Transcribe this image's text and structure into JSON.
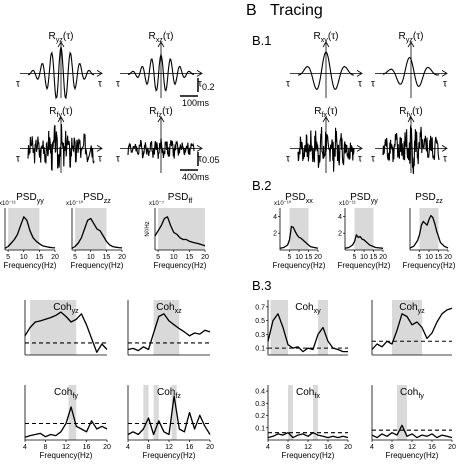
{
  "panel_b": {
    "letter": "B",
    "title": "Tracing"
  },
  "section_labels": {
    "b1": "B.1",
    "b2": "B.2",
    "b3": "B.3"
  },
  "time_axis": {
    "tau": "τ",
    "amp_bar_1": "0.2",
    "time_bar_1": "100ms",
    "amp_bar_2": "0.05",
    "time_bar_2": "400ms"
  },
  "colors": {
    "line": "#000000",
    "band": "#d9d9d9"
  },
  "chart_data": [
    {
      "type": "line",
      "panel": "A-corr",
      "title": "R_yz(τ)",
      "series": [
        {
          "values": []
        }
      ]
    },
    {
      "type": "line",
      "panel": "A-corr",
      "title": "R_xz(τ)",
      "series": [
        {
          "values": []
        }
      ]
    },
    {
      "type": "line",
      "panel": "A-corr",
      "title": "R_fy(τ)",
      "series": [
        {
          "values": []
        }
      ]
    },
    {
      "type": "line",
      "panel": "A-corr",
      "title": "R_fz(τ)",
      "series": [
        {
          "values": []
        }
      ]
    },
    {
      "type": "line",
      "panel": "B-corr",
      "title": "R_xy(τ)",
      "series": [
        {
          "values": []
        }
      ]
    },
    {
      "type": "line",
      "panel": "B-corr",
      "title": "R_yz(τ)",
      "series": [
        {
          "values": []
        }
      ]
    },
    {
      "type": "line",
      "panel": "B-corr",
      "title": "R_fx(τ)",
      "series": [
        {
          "values": []
        }
      ]
    },
    {
      "type": "line",
      "panel": "B-corr",
      "title": "R_fy(τ)",
      "series": [
        {
          "values": []
        }
      ]
    },
    {
      "type": "line",
      "panel": "A-psd",
      "title": "PSD_yy",
      "exponent": "x10⁻¹¹",
      "ylabel": "",
      "xlabel": "Frequency(Hz)",
      "xlim": [
        4,
        20
      ],
      "xticks": [
        5,
        10,
        15,
        20
      ],
      "yticks": [],
      "shade": [
        [
          5,
          15
        ]
      ],
      "x": [
        4,
        5,
        6,
        7,
        8,
        9,
        10,
        11,
        12,
        13,
        14,
        15,
        16,
        17,
        18,
        19,
        20
      ],
      "series": [
        {
          "values": [
            0.05,
            0.1,
            0.2,
            0.3,
            0.45,
            0.7,
            0.95,
            0.85,
            0.55,
            0.35,
            0.25,
            0.18,
            0.12,
            0.1,
            0.08,
            0.07,
            0.06
          ]
        }
      ],
      "ylim": [
        0,
        1.2
      ]
    },
    {
      "type": "line",
      "panel": "A-psd",
      "title": "PSD_zz",
      "exponent": "x10⁻¹⁰",
      "ylabel": "",
      "xlabel": "Frequency(Hz)",
      "xlim": [
        4,
        20
      ],
      "xticks": [
        5,
        10,
        15,
        20
      ],
      "yticks": [],
      "shade": [
        [
          5,
          15
        ]
      ],
      "x": [
        4,
        5,
        6,
        7,
        8,
        9,
        10,
        11,
        12,
        13,
        14,
        15,
        16,
        17,
        18,
        19,
        20
      ],
      "series": [
        {
          "values": [
            0.05,
            0.1,
            0.2,
            0.35,
            0.6,
            0.85,
            0.9,
            0.75,
            0.6,
            0.55,
            0.4,
            0.25,
            0.15,
            0.1,
            0.08,
            0.07,
            0.06
          ]
        }
      ],
      "ylim": [
        0,
        1.2
      ]
    },
    {
      "type": "line",
      "panel": "A-psd",
      "title": "PSD_ff",
      "exponent": "x10⁻⁷",
      "ylabel": "N²/Hz",
      "xlabel": "Frequency(Hz)",
      "xlim": [
        4,
        20
      ],
      "xticks": [
        5,
        10,
        15,
        20
      ],
      "yticks": [],
      "shade": [
        [
          5,
          20
        ]
      ],
      "x": [
        4,
        5,
        6,
        7,
        8,
        9,
        10,
        11,
        12,
        13,
        14,
        15,
        16,
        17,
        18,
        19,
        20
      ],
      "series": [
        {
          "values": [
            0.4,
            0.55,
            0.7,
            0.9,
            0.95,
            0.7,
            0.5,
            0.45,
            0.35,
            0.3,
            0.3,
            0.25,
            0.22,
            0.2,
            0.18,
            0.15,
            0.12
          ]
        }
      ],
      "ylim": [
        0,
        1.2
      ]
    },
    {
      "type": "line",
      "panel": "B-psd",
      "title": "PSD_xx",
      "exponent": "x10⁻¹⁰",
      "ylabel": "",
      "xlabel": "Frequency(Hz)",
      "xlim": [
        0,
        20
      ],
      "xticks": [
        5,
        10,
        15,
        20
      ],
      "yticks": [
        2,
        4
      ],
      "shade": [
        [
          5,
          15
        ]
      ],
      "x": [
        0,
        2,
        4,
        5,
        6,
        7,
        8,
        9,
        10,
        11,
        12,
        13,
        14,
        15,
        16,
        18,
        20
      ],
      "series": [
        {
          "values": [
            0.2,
            0.3,
            0.6,
            1.2,
            2.8,
            2.7,
            2.2,
            1.8,
            1.5,
            1.4,
            1.2,
            1.0,
            0.8,
            0.6,
            0.4,
            0.3,
            0.2
          ]
        }
      ],
      "ylim": [
        0,
        5
      ]
    },
    {
      "type": "line",
      "panel": "B-psd",
      "title": "PSD_yy",
      "exponent": "x10⁻¹¹",
      "ylabel": "",
      "xlabel": "Frequency(Hz)",
      "xlim": [
        0,
        20
      ],
      "xticks": [
        5,
        10,
        15,
        20
      ],
      "yticks": [
        2,
        4
      ],
      "shade": [
        [
          5,
          15
        ]
      ],
      "x": [
        0,
        2,
        4,
        5,
        6,
        7,
        8,
        9,
        10,
        11,
        12,
        13,
        14,
        15,
        16,
        18,
        20
      ],
      "series": [
        {
          "values": [
            0.2,
            0.3,
            0.6,
            1.0,
            1.8,
            1.5,
            1.6,
            1.3,
            1.2,
            1.0,
            0.8,
            0.6,
            0.5,
            0.4,
            0.3,
            0.25,
            0.2
          ]
        }
      ],
      "ylim": [
        0,
        5
      ]
    },
    {
      "type": "line",
      "panel": "B-psd",
      "title": "PSD_zz",
      "exponent": "",
      "ylabel": "",
      "xlabel": "Frequency(Hz)",
      "xlim": [
        0,
        20
      ],
      "xticks": [
        5,
        10,
        15,
        20
      ],
      "yticks": [],
      "shade": [
        [
          5,
          15
        ]
      ],
      "x": [
        0,
        2,
        4,
        5,
        6,
        7,
        8,
        9,
        10,
        11,
        12,
        13,
        14,
        15,
        16,
        18,
        20
      ],
      "series": [
        {
          "values": [
            0.1,
            0.2,
            0.5,
            0.8,
            1.3,
            1.5,
            1.4,
            1.3,
            1.6,
            1.8,
            1.7,
            1.4,
            1.0,
            0.7,
            0.4,
            0.2,
            0.1
          ]
        }
      ],
      "ylim": [
        0,
        2.2
      ]
    },
    {
      "type": "line",
      "panel": "A-coh",
      "title": "Coh_yz",
      "xlabel": "",
      "xlim": [
        4,
        20
      ],
      "xticks": [],
      "yticks": [],
      "ylim": [
        0,
        1
      ],
      "threshold": 0.22,
      "shade": [
        [
          5,
          14
        ]
      ],
      "x": [
        4,
        5,
        6,
        7,
        8,
        9,
        10,
        11,
        12,
        13,
        14,
        15,
        16,
        17,
        18,
        19,
        20
      ],
      "series": [
        {
          "values": [
            0.35,
            0.5,
            0.6,
            0.62,
            0.65,
            0.68,
            0.72,
            0.78,
            0.7,
            0.6,
            0.65,
            0.75,
            0.55,
            0.3,
            0.05,
            0.2,
            0.1
          ]
        }
      ]
    },
    {
      "type": "line",
      "panel": "A-coh",
      "title": "Coh_xz",
      "xlabel": "",
      "xlim": [
        4,
        20
      ],
      "xticks": [],
      "yticks": [],
      "ylim": [
        0,
        1
      ],
      "threshold": 0.22,
      "shade": [
        [
          9,
          14
        ]
      ],
      "x": [
        4,
        5,
        6,
        7,
        8,
        9,
        10,
        11,
        12,
        13,
        14,
        15,
        16,
        17,
        18,
        19,
        20
      ],
      "series": [
        {
          "values": [
            0.1,
            0.12,
            0.08,
            0.15,
            0.1,
            0.4,
            0.7,
            0.75,
            0.62,
            0.55,
            0.48,
            0.42,
            0.35,
            0.4,
            0.38,
            0.45,
            0.42
          ]
        }
      ]
    },
    {
      "type": "line",
      "panel": "A-coh",
      "title": "Coh_fy",
      "xlabel": "Frequency(Hz)",
      "xlim": [
        4,
        20
      ],
      "xticks": [
        4,
        8,
        12,
        16,
        20
      ],
      "yticks": [],
      "ylim": [
        0,
        1
      ],
      "threshold": 0.3,
      "shade": [
        [
          12.5,
          14
        ]
      ],
      "x": [
        4,
        5,
        6,
        7,
        8,
        9,
        10,
        11,
        12,
        13,
        14,
        15,
        16,
        17,
        18,
        19,
        20
      ],
      "series": [
        {
          "values": [
            0.05,
            0.08,
            0.1,
            0.12,
            0.06,
            0.1,
            0.08,
            0.15,
            0.3,
            0.6,
            0.25,
            0.2,
            0.15,
            0.35,
            0.2,
            0.25,
            0.2
          ]
        }
      ]
    },
    {
      "type": "line",
      "panel": "A-coh",
      "title": "Coh_fz",
      "xlabel": "Frequency(Hz)",
      "xlim": [
        4,
        20
      ],
      "xticks": [
        4,
        8,
        12,
        16,
        20
      ],
      "yticks": [],
      "ylim": [
        0,
        1
      ],
      "threshold": 0.3,
      "shade": [
        [
          7,
          8
        ],
        [
          9,
          10
        ],
        [
          12.5,
          13.5
        ]
      ],
      "x": [
        4,
        5,
        6,
        7,
        8,
        9,
        10,
        11,
        12,
        13,
        14,
        15,
        16,
        17,
        18,
        19,
        20
      ],
      "series": [
        {
          "values": [
            0.1,
            0.15,
            0.1,
            0.2,
            0.4,
            0.1,
            0.35,
            0.15,
            0.1,
            0.8,
            0.2,
            0.15,
            0.5,
            0.2,
            0.45,
            0.25,
            0.1
          ]
        }
      ]
    },
    {
      "type": "line",
      "panel": "B-coh",
      "title": "Coh_xy",
      "xlabel": "",
      "xlim": [
        4,
        20
      ],
      "xticks": [],
      "yticks": [
        0.1,
        0.3,
        0.5,
        0.7
      ],
      "ylim": [
        0,
        0.8
      ],
      "threshold": 0.1,
      "shade": [
        [
          4.5,
          8
        ],
        [
          14,
          16
        ]
      ],
      "x": [
        4,
        5,
        6,
        7,
        8,
        9,
        10,
        11,
        12,
        13,
        14,
        15,
        16,
        17,
        18,
        19,
        20
      ],
      "series": [
        {
          "values": [
            0.2,
            0.5,
            0.6,
            0.4,
            0.15,
            0.1,
            0.12,
            0.05,
            0.1,
            0.08,
            0.3,
            0.4,
            0.2,
            0.1,
            0.08,
            0.05,
            0.05
          ]
        }
      ]
    },
    {
      "type": "line",
      "panel": "B-coh",
      "title": "Coh_yz",
      "xlabel": "",
      "xlim": [
        4,
        20
      ],
      "xticks": [],
      "yticks": [],
      "ylim": [
        0,
        1
      ],
      "threshold": 0.25,
      "shade": [
        [
          8,
          14
        ]
      ],
      "x": [
        4,
        5,
        6,
        7,
        8,
        9,
        10,
        11,
        12,
        13,
        14,
        15,
        16,
        17,
        18,
        19,
        20
      ],
      "series": [
        {
          "values": [
            0.1,
            0.2,
            0.15,
            0.25,
            0.2,
            0.45,
            0.75,
            0.7,
            0.55,
            0.6,
            0.5,
            0.3,
            0.4,
            0.6,
            0.75,
            0.82,
            0.85
          ]
        }
      ]
    },
    {
      "type": "line",
      "panel": "B-coh",
      "title": "Coh_fx",
      "xlabel": "Frequency(Hz)",
      "xlim": [
        4,
        20
      ],
      "xticks": [
        4,
        8,
        12,
        16,
        20
      ],
      "yticks": [
        0.1,
        0.2,
        0.3,
        0.4
      ],
      "ylim": [
        0,
        0.45
      ],
      "threshold": 0.06,
      "shade": [
        [
          8,
          9
        ],
        [
          13,
          14
        ]
      ],
      "x": [
        4,
        5,
        6,
        7,
        8,
        9,
        10,
        11,
        12,
        13,
        14,
        15,
        16,
        17,
        18,
        19,
        20
      ],
      "series": [
        {
          "values": [
            0.02,
            0.03,
            0.05,
            0.04,
            0.06,
            0.02,
            0.04,
            0.05,
            0.03,
            0.06,
            0.04,
            0.03,
            0.02,
            0.03,
            0.02,
            0.03,
            0.02
          ]
        }
      ]
    },
    {
      "type": "line",
      "panel": "B-coh",
      "title": "Coh_fy",
      "xlabel": "Frequency(Hz)",
      "xlim": [
        4,
        20
      ],
      "xticks": [
        4,
        8,
        12,
        16,
        20
      ],
      "yticks": [],
      "ylim": [
        0,
        0.45
      ],
      "threshold": 0.08,
      "shade": [
        [
          9,
          11
        ]
      ],
      "x": [
        4,
        5,
        6,
        7,
        8,
        9,
        10,
        11,
        12,
        13,
        14,
        15,
        16,
        17,
        18,
        19,
        20
      ],
      "series": [
        {
          "values": [
            0.04,
            0.02,
            0.05,
            0.03,
            0.06,
            0.04,
            0.12,
            0.03,
            0.05,
            0.02,
            0.04,
            0.03,
            0.05,
            0.02,
            0.04,
            0.03,
            0.02
          ]
        }
      ]
    }
  ]
}
